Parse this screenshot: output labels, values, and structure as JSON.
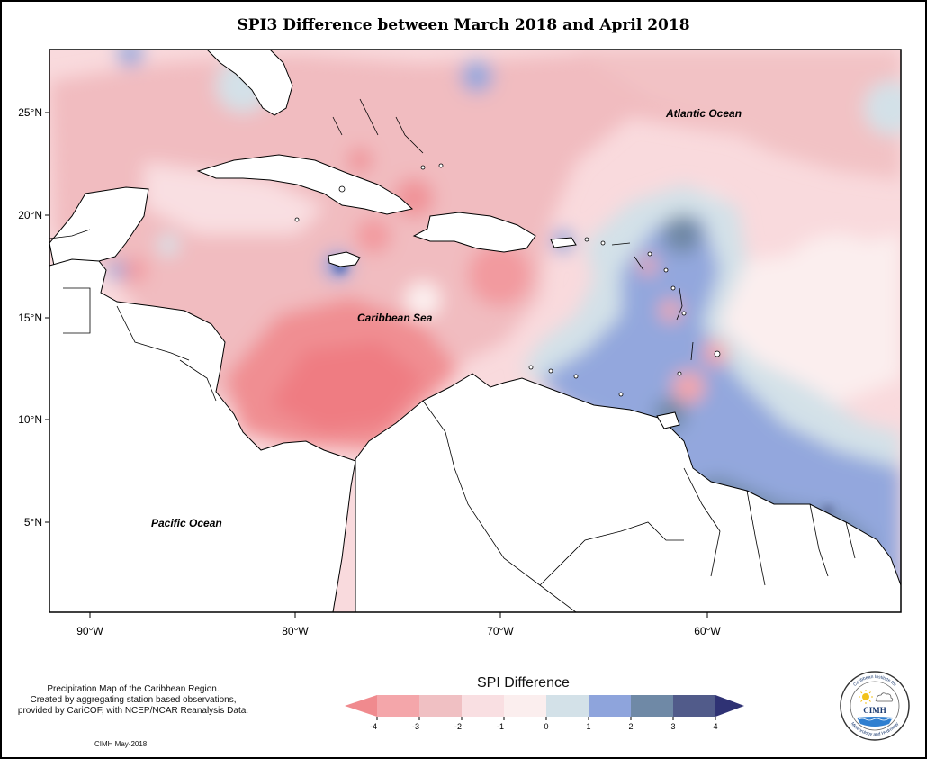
{
  "title": "SPI3 Difference between March 2018 and April 2018",
  "map": {
    "region": "Caribbean",
    "lat_ticks": [
      {
        "value": 25,
        "label": "25°N"
      },
      {
        "value": 20,
        "label": "20°N"
      },
      {
        "value": 15,
        "label": "15°N"
      },
      {
        "value": 10,
        "label": "10°N"
      },
      {
        "value": 5,
        "label": "5°N"
      }
    ],
    "lon_ticks": [
      {
        "value": -90,
        "label": "90°W"
      },
      {
        "value": -80,
        "label": "80°W"
      },
      {
        "value": -70,
        "label": "70°W"
      },
      {
        "value": -60,
        "label": "60°W"
      }
    ],
    "labels": {
      "atlantic": "Atlantic Ocean",
      "caribbean": "Caribbean Sea",
      "pacific": "Pacific Ocean"
    }
  },
  "legend": {
    "title": "SPI Difference",
    "ticks": [
      "-4",
      "-3",
      "-2",
      "-1",
      "0",
      "1",
      "2",
      "3",
      "4"
    ],
    "colors": [
      "#f08a8e",
      "#f4a6aa",
      "#f0c0c3",
      "#f9dfe2",
      "#fbeeee",
      "#d3e1e8",
      "#8ea4dc",
      "#6f89a6",
      "#515b8a",
      "#2f3274"
    ]
  },
  "notes": {
    "line1": "Precipitation Map of the Caribbean Region.",
    "line2": "Created by aggregating station based observations,",
    "line3": "provided by CariCOF, with NCEP/NCAR Reanalysis Data."
  },
  "credit": "CIMH May-2018",
  "logo": {
    "name": "CIMH",
    "ring_text_top": "Caribbean Institute for",
    "ring_text_bottom": "Meteorology and Hydrology"
  }
}
